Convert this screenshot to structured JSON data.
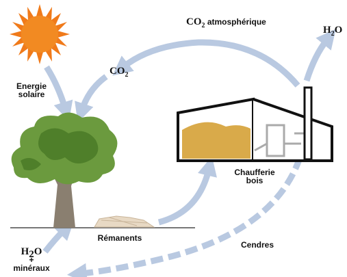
{
  "labels": {
    "co2_atmospheric": [
      "CO",
      "2",
      " atmosphérique"
    ],
    "h2o_top": [
      "H",
      "2",
      "O"
    ],
    "co2": [
      "CO",
      "2"
    ],
    "solar_energy": [
      "Energie",
      "solaire"
    ],
    "boiler": [
      "Chaufferie",
      "bois"
    ],
    "residues": "Rémanents",
    "ashes": "Cendres",
    "h2o_minerals": [
      "H",
      "2",
      "O",
      "+",
      "minéraux"
    ]
  }
}
